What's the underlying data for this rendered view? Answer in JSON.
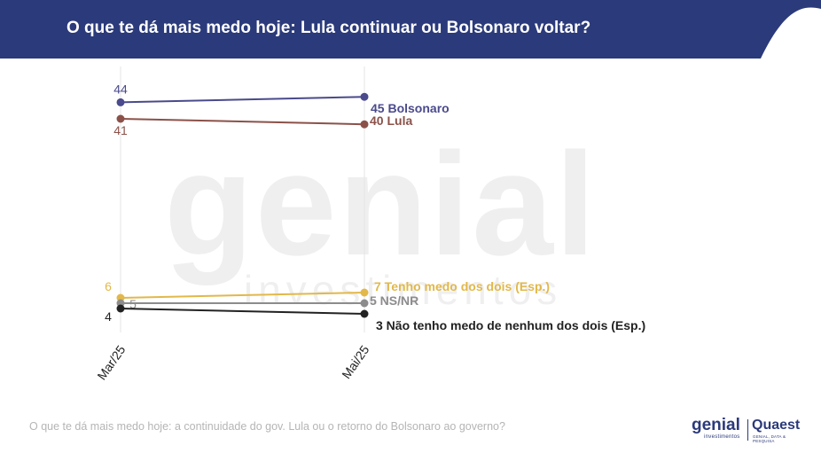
{
  "header": {
    "title": "O que te dá mais medo hoje: Lula continuar ou Bolsonaro voltar?",
    "bg_color": "#2b3a7a"
  },
  "watermark": {
    "brand": "genial",
    "sub": "investimentos"
  },
  "chart_data": {
    "type": "line",
    "title": "O que te dá mais medo hoje: Lula continuar ou Bolsonaro voltar?",
    "categories": [
      "Mar/25",
      "Mai/25"
    ],
    "series": [
      {
        "name": "Bolsonaro",
        "values": [
          44,
          45
        ],
        "color": "#4a4a8c",
        "start_label": "44",
        "end_label": "45 Bolsonaro"
      },
      {
        "name": "Lula",
        "values": [
          41,
          40
        ],
        "color": "#8b5149",
        "start_label": "41",
        "end_label": "40 Lula"
      },
      {
        "name": "Tenho medo dos dois (Esp.)",
        "values": [
          6,
          7
        ],
        "color": "#e2b84a",
        "start_label": "6",
        "end_label": "7 Tenho medo dos dois (Esp.)"
      },
      {
        "name": "NS/NR",
        "values": [
          5,
          5
        ],
        "color": "#8c8c8c",
        "start_label": "5",
        "end_label": "5 NS/NR"
      },
      {
        "name": "Não tenho medo de nenhum dos dois (Esp.)",
        "values": [
          4,
          3
        ],
        "color": "#222222",
        "start_label": "4",
        "end_label": "3 Não tenho medo de nenhum dos dois (Esp.)"
      }
    ],
    "ylim": [
      0,
      50
    ],
    "grid": "vertical"
  },
  "footnote": "O que te dá mais medo hoje: a continuidade do gov. Lula ou o retorno do Bolsonaro ao governo?",
  "logos": {
    "genial": "genial",
    "genial_sub": "investimentos",
    "quaest": "Quaest",
    "quaest_sub": "GENIAL, DATA & PESQUISA"
  }
}
